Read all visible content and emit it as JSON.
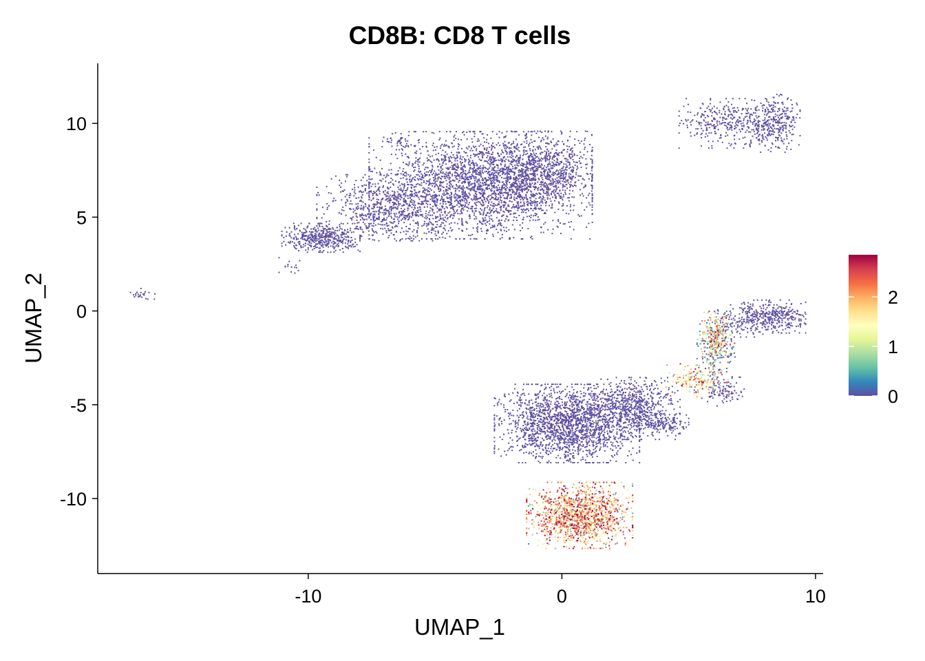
{
  "chart_data": {
    "type": "scatter",
    "title": "CD8B: CD8 T cells",
    "xlabel": "UMAP_1",
    "ylabel": "UMAP_2",
    "xlim": [
      -18.3,
      10.3
    ],
    "ylim": [
      -14.0,
      13.2
    ],
    "x_ticks": [
      -10,
      0,
      10
    ],
    "y_ticks": [
      -10,
      -5,
      0,
      5,
      10
    ],
    "x_tick_labels": [
      "-10",
      "0",
      "10"
    ],
    "y_tick_labels": [
      "-10",
      "-5",
      "0",
      "5",
      "10"
    ],
    "grid": false,
    "legend": {
      "placement": "right",
      "min": 0,
      "max": 2.85,
      "ticks": [
        0,
        1,
        2
      ],
      "tick_labels": [
        "0",
        "1",
        "2"
      ],
      "palette": [
        "#5E4FA2",
        "#3288BD",
        "#66C2A5",
        "#ABDDA4",
        "#E6F598",
        "#FFFFBF",
        "#FEE08B",
        "#FDAE61",
        "#F46D43",
        "#D53E4F",
        "#9E0142"
      ]
    },
    "clusters": [
      {
        "cx": -3.2,
        "cy": 6.7,
        "sx": 2.0,
        "sy": 1.3,
        "n": 2600,
        "expr": 0.0
      },
      {
        "cx": -0.8,
        "cy": 7.6,
        "sx": 0.9,
        "sy": 0.9,
        "n": 700,
        "expr": 0.0
      },
      {
        "cx": -6.8,
        "cy": 5.5,
        "sx": 1.3,
        "sy": 0.8,
        "n": 700,
        "expr": 0.0
      },
      {
        "cx": -9.5,
        "cy": 3.9,
        "sx": 0.7,
        "sy": 0.35,
        "n": 450,
        "expr": 0.0
      },
      {
        "cx": -6.3,
        "cy": 8.9,
        "sx": 0.3,
        "sy": 0.25,
        "n": 40,
        "expr": 0.0
      },
      {
        "cx": -10.6,
        "cy": 2.4,
        "sx": 0.25,
        "sy": 0.2,
        "n": 15,
        "expr": 0.0
      },
      {
        "cx": -16.6,
        "cy": 0.9,
        "sx": 0.25,
        "sy": 0.15,
        "n": 25,
        "expr": 0.0
      },
      {
        "cx": 6.6,
        "cy": 10.0,
        "sx": 0.9,
        "sy": 0.6,
        "n": 350,
        "expr": 0.0
      },
      {
        "cx": 8.4,
        "cy": 10.0,
        "sx": 0.45,
        "sy": 0.7,
        "n": 300,
        "expr": 0.0
      },
      {
        "cx": 0.2,
        "cy": -6.0,
        "sx": 1.3,
        "sy": 0.95,
        "n": 1900,
        "expr": 0.0
      },
      {
        "cx": 2.9,
        "cy": -5.2,
        "sx": 0.8,
        "sy": 0.75,
        "n": 650,
        "expr": 0.0
      },
      {
        "cx": 3.9,
        "cy": -6.1,
        "sx": 0.5,
        "sy": 0.25,
        "n": 120,
        "expr": 0.0
      },
      {
        "cx": 8.4,
        "cy": -0.3,
        "sx": 0.55,
        "sy": 0.4,
        "n": 300,
        "expr": 0.0
      },
      {
        "cx": 7.2,
        "cy": -0.4,
        "sx": 0.5,
        "sy": 0.45,
        "n": 150,
        "expr": 0.0
      },
      {
        "cx": 6.1,
        "cy": -2.0,
        "sx": 0.35,
        "sy": 0.9,
        "n": 260,
        "expr": 0.15
      },
      {
        "cx": 6.1,
        "cy": -1.4,
        "sx": 0.3,
        "sy": 0.6,
        "n": 220,
        "expr": 1.9
      },
      {
        "cx": 5.3,
        "cy": -3.7,
        "sx": 0.55,
        "sy": 0.4,
        "n": 200,
        "expr": 1.8
      },
      {
        "cx": 6.4,
        "cy": -4.3,
        "sx": 0.4,
        "sy": 0.35,
        "n": 100,
        "expr": 0.0
      },
      {
        "cx": 0.7,
        "cy": -10.9,
        "sx": 0.95,
        "sy": 0.8,
        "n": 1500,
        "expr": 2.05
      }
    ]
  }
}
